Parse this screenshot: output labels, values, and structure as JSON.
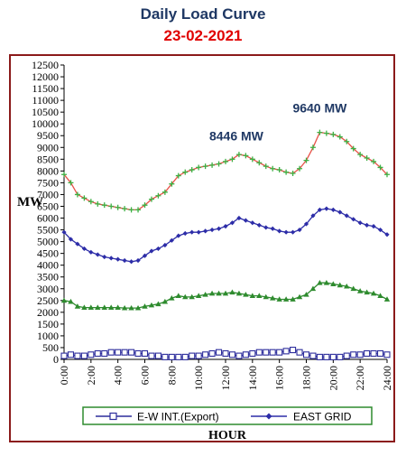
{
  "chart_data": {
    "type": "line",
    "title": "Daily Load Curve",
    "subtitle": "23-02-2021",
    "xlabel": "HOUR",
    "ylabel": "MW",
    "ylim": [
      0,
      12500
    ],
    "ytick_step": 500,
    "xlim": [
      0,
      24
    ],
    "xtick_labels": [
      "0:00",
      "2:00",
      "4:00",
      "6:00",
      "8:00",
      "10:00",
      "12:00",
      "14:00",
      "16:00",
      "18:00",
      "20:00",
      "22:00",
      "24:00"
    ],
    "grid": false,
    "legend_position": "bottom",
    "annotations": [
      {
        "text": "8446 MW",
        "x": 12.8,
        "y": 8446
      },
      {
        "text": "9640 MW",
        "x": 19.0,
        "y": 9640
      }
    ],
    "colors": {
      "ew_int": "#2d2d9c",
      "east_grid": "#2d2da8",
      "top_line": "#e8534a",
      "top_marker": "#3cb043",
      "green_series": "#2e8b2e",
      "frame": "#8b1a1a",
      "legend_border": "#2e8b2e"
    },
    "x": [
      0,
      0.5,
      1,
      1.5,
      2,
      2.5,
      3,
      3.5,
      4,
      4.5,
      5,
      5.5,
      6,
      6.5,
      7,
      7.5,
      8,
      8.5,
      9,
      9.5,
      10,
      10.5,
      11,
      11.5,
      12,
      12.5,
      13,
      13.5,
      14,
      14.5,
      15,
      15.5,
      16,
      16.5,
      17,
      17.5,
      18,
      18.5,
      19,
      19.5,
      20,
      20.5,
      21,
      21.5,
      22,
      22.5,
      23,
      23.5,
      24
    ],
    "series": [
      {
        "key": "top",
        "values": [
          7850,
          7500,
          7000,
          6850,
          6700,
          6600,
          6550,
          6500,
          6450,
          6400,
          6350,
          6350,
          6550,
          6800,
          6950,
          7100,
          7450,
          7800,
          7950,
          8050,
          8150,
          8200,
          8250,
          8300,
          8400,
          8500,
          8700,
          8650,
          8500,
          8350,
          8200,
          8100,
          8050,
          7950,
          7900,
          8100,
          8450,
          9000,
          9640,
          9600,
          9550,
          9450,
          9250,
          8950,
          8700,
          8550,
          8400,
          8150,
          7850
        ]
      },
      {
        "key": "east_grid",
        "name": "EAST GRID",
        "values": [
          5400,
          5100,
          4900,
          4700,
          4550,
          4450,
          4350,
          4300,
          4250,
          4200,
          4150,
          4200,
          4400,
          4600,
          4700,
          4850,
          5050,
          5250,
          5350,
          5400,
          5400,
          5450,
          5500,
          5550,
          5650,
          5800,
          6000,
          5900,
          5800,
          5700,
          5600,
          5550,
          5450,
          5400,
          5400,
          5500,
          5750,
          6100,
          6350,
          6400,
          6350,
          6250,
          6100,
          5950,
          5800,
          5700,
          5650,
          5500,
          5300
        ]
      },
      {
        "key": "green",
        "values": [
          2500,
          2450,
          2250,
          2200,
          2200,
          2200,
          2200,
          2200,
          2200,
          2180,
          2180,
          2180,
          2250,
          2300,
          2350,
          2450,
          2600,
          2700,
          2650,
          2650,
          2700,
          2750,
          2800,
          2800,
          2800,
          2850,
          2800,
          2750,
          2700,
          2700,
          2650,
          2600,
          2550,
          2550,
          2550,
          2650,
          2750,
          3000,
          3250,
          3250,
          3200,
          3150,
          3100,
          3000,
          2900,
          2850,
          2800,
          2700,
          2550
        ]
      },
      {
        "key": "ew_int",
        "name": "E-W INT.(Export)",
        "values": [
          150,
          200,
          150,
          150,
          200,
          250,
          250,
          300,
          300,
          300,
          300,
          250,
          250,
          150,
          150,
          100,
          100,
          100,
          100,
          150,
          150,
          200,
          250,
          300,
          250,
          200,
          150,
          200,
          250,
          300,
          300,
          300,
          300,
          350,
          400,
          300,
          200,
          150,
          100,
          100,
          100,
          100,
          150,
          200,
          200,
          250,
          250,
          250,
          200
        ]
      }
    ]
  }
}
